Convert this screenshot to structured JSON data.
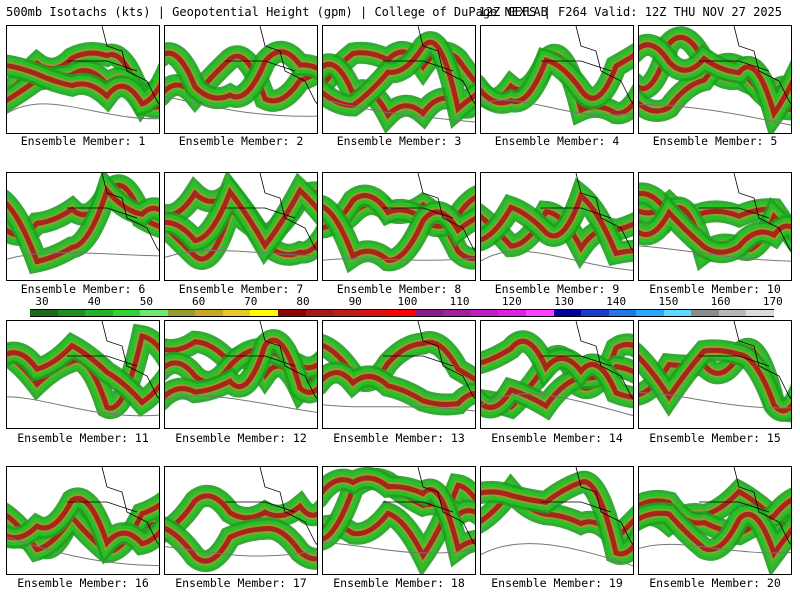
{
  "header": {
    "left": "500mb Isotachs (kts) | Geopotential Height (gpm) | College of DuPage NEXLAB",
    "right": "12Z GEFS | F264 Valid: 12Z THU NOV 27 2025"
  },
  "panels": [
    {
      "label": "Ensemble Member: 1"
    },
    {
      "label": "Ensemble Member: 2"
    },
    {
      "label": "Ensemble Member: 3"
    },
    {
      "label": "Ensemble Member: 4"
    },
    {
      "label": "Ensemble Member: 5"
    },
    {
      "label": "Ensemble Member: 6"
    },
    {
      "label": "Ensemble Member: 7"
    },
    {
      "label": "Ensemble Member: 8"
    },
    {
      "label": "Ensemble Member: 9"
    },
    {
      "label": "Ensemble Member: 10"
    },
    {
      "label": "Ensemble Member: 11"
    },
    {
      "label": "Ensemble Member: 12"
    },
    {
      "label": "Ensemble Member: 13"
    },
    {
      "label": "Ensemble Member: 14"
    },
    {
      "label": "Ensemble Member: 15"
    },
    {
      "label": "Ensemble Member: 16"
    },
    {
      "label": "Ensemble Member: 17"
    },
    {
      "label": "Ensemble Member: 18"
    },
    {
      "label": "Ensemble Member: 19"
    },
    {
      "label": "Ensemble Member: 20"
    }
  ],
  "colorbar": {
    "ticks": [
      "30",
      "40",
      "50",
      "60",
      "70",
      "80",
      "90",
      "100",
      "110",
      "120",
      "130",
      "140",
      "150",
      "160",
      "170"
    ],
    "colors": [
      "#1a6b1a",
      "#1f8f1f",
      "#27b327",
      "#33d433",
      "#6ee86e",
      "#9a9a33",
      "#c8a828",
      "#e6c828",
      "#ffff00",
      "#8b0000",
      "#a81818",
      "#c01a1a",
      "#e01010",
      "#ff0000",
      "#8b1a8b",
      "#a020a0",
      "#c020c0",
      "#e020e0",
      "#ff40ff",
      "#0000a0",
      "#1a3ccc",
      "#1e78e6",
      "#28a8ff",
      "#60d8ff",
      "#8c8c8c",
      "#b8b8b8",
      "#dcdcdc"
    ]
  }
}
